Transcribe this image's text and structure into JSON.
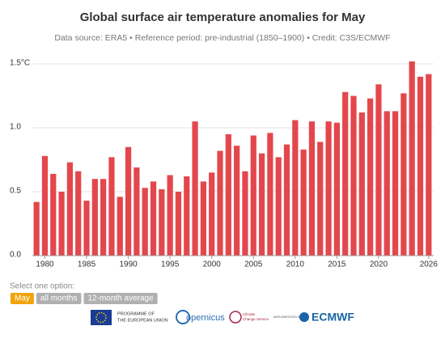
{
  "chart_data": {
    "type": "bar",
    "title": "Global surface air temperature anomalies for May",
    "subtitle": "Data source: ERA5 • Reference period: pre-industrial (1850–1900) • Credit: C3S/ECMWF",
    "x": [
      1979,
      1980,
      1981,
      1982,
      1983,
      1984,
      1985,
      1986,
      1987,
      1988,
      1989,
      1990,
      1991,
      1992,
      1993,
      1994,
      1995,
      1996,
      1997,
      1998,
      1999,
      2000,
      2001,
      2002,
      2003,
      2004,
      2005,
      2006,
      2007,
      2008,
      2009,
      2010,
      2011,
      2012,
      2013,
      2014,
      2015,
      2016,
      2017,
      2018,
      2019,
      2020,
      2021,
      2022,
      2023,
      2024,
      2025,
      2026
    ],
    "values": [
      0.42,
      0.78,
      0.64,
      0.5,
      0.73,
      0.66,
      0.43,
      0.6,
      0.6,
      0.77,
      0.46,
      0.85,
      0.69,
      0.53,
      0.58,
      0.52,
      0.63,
      0.5,
      0.62,
      1.05,
      0.58,
      0.65,
      0.82,
      0.95,
      0.86,
      0.66,
      0.94,
      0.8,
      0.96,
      0.77,
      0.87,
      1.06,
      0.83,
      1.05,
      0.89,
      1.05,
      1.04,
      1.28,
      1.25,
      1.12,
      1.23,
      1.34,
      1.13,
      1.13,
      1.27,
      1.52,
      1.4,
      1.42
    ],
    "color": "#e3474c",
    "xlim": [
      1978.5,
      2026.6
    ],
    "xticks": [
      1980,
      1985,
      1990,
      1995,
      2000,
      2005,
      2010,
      2015,
      2020,
      2026
    ],
    "ylim": [
      0,
      1.5
    ],
    "yticks": [
      {
        "value": 0,
        "label": "0.0"
      },
      {
        "value": 0.5,
        "label": "0.5"
      },
      {
        "value": 1,
        "label": "1.0"
      },
      {
        "value": 1.5,
        "label": "1.5°C"
      }
    ],
    "grid": true
  },
  "controls": {
    "prompt": "Select one option:",
    "options": [
      "May",
      "all months",
      "12-month average"
    ],
    "selected": 0
  },
  "footer": {
    "eu": [
      "PROGRAMME OF",
      "THE EUROPEAN UNION"
    ],
    "copernicus": "opernicus",
    "c3s": [
      "Climate",
      "Change Service"
    ],
    "implemented": "IMPLEMENTED BY",
    "ecmwf": "ECMWF"
  }
}
